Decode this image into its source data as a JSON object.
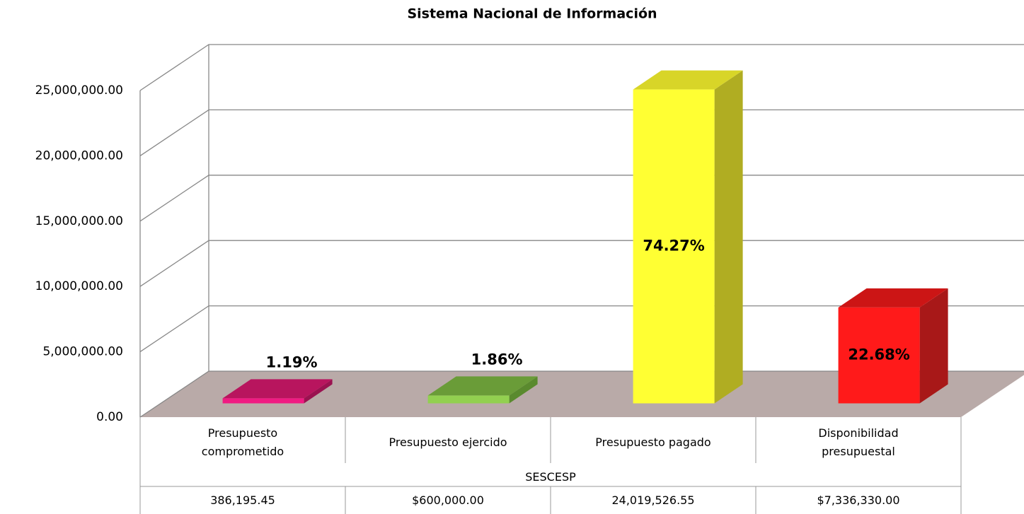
{
  "chart_data": {
    "type": "bar3d",
    "title": "Sistema Nacional de Información",
    "categories": [
      "Presupuesto comprometido",
      "Presupuesto ejercido",
      "Presupuesto pagado",
      "Disponibilidad presupuestal"
    ],
    "group": "SESCESP",
    "values": [
      386195.45,
      600000,
      24019526.55,
      7336330
    ],
    "value_labels": [
      "386,195.45",
      "$600,000.00",
      "24,019,526.55",
      "$7,336,330.00"
    ],
    "share_labels": [
      "1.19%",
      "1.86%",
      "74.27%",
      "22.68%"
    ],
    "colors": [
      {
        "front": "#f01a82",
        "top": "#b8155e",
        "side": "#9a1250"
      },
      {
        "front": "#92d050",
        "top": "#6a9c38",
        "side": "#5a8a2e"
      },
      {
        "front": "#ffff33",
        "top": "#d8d528",
        "side": "#b0ad22"
      },
      {
        "front": "#ff1a1a",
        "top": "#cc1515",
        "side": "#a81818"
      }
    ],
    "floor_color": "#b9aaa8",
    "ylim": [
      0,
      25000000
    ],
    "yticks": [
      {
        "value": 0,
        "label": "0.00"
      },
      {
        "value": 5000000,
        "label": "5,000,000.00"
      },
      {
        "value": 10000000,
        "label": "10,000,000.00"
      },
      {
        "value": 15000000,
        "label": "15,000,000.00"
      },
      {
        "value": 20000000,
        "label": "20,000,000.00"
      },
      {
        "value": 25000000,
        "label": "25,000,000.00"
      }
    ],
    "grid": true
  }
}
